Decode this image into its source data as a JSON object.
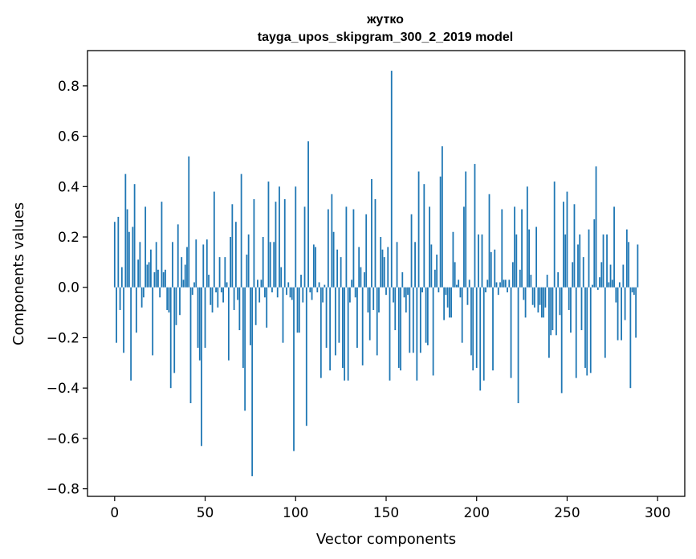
{
  "chart_data": {
    "type": "bar",
    "title": "жутко",
    "subtitle": "tayga_upos_skipgram_300_2_2019 model",
    "xlabel": "Vector components",
    "ylabel": "Components values",
    "xlim": [
      -15,
      315
    ],
    "ylim": [
      -0.83,
      0.94
    ],
    "xticks": [
      0,
      50,
      100,
      150,
      200,
      250,
      300
    ],
    "xtick_labels": [
      "0",
      "50",
      "100",
      "150",
      "200",
      "250",
      "300"
    ],
    "yticks": [
      -0.8,
      -0.6,
      -0.4,
      -0.2,
      0.0,
      0.2,
      0.4,
      0.6,
      0.8
    ],
    "ytick_labels": [
      "−0.8",
      "−0.6",
      "−0.4",
      "−0.2",
      "0.0",
      "0.2",
      "0.4",
      "0.6",
      "0.8"
    ],
    "bar_color": "#1f77b4",
    "values": [
      0.26,
      -0.22,
      0.28,
      -0.09,
      0.08,
      -0.26,
      0.45,
      0.31,
      0.22,
      -0.37,
      0.24,
      0.41,
      -0.18,
      0.11,
      0.18,
      -0.08,
      -0.04,
      0.32,
      0.09,
      0.1,
      0.15,
      -0.27,
      0.06,
      0.18,
      0.07,
      -0.04,
      0.34,
      0.06,
      0.07,
      -0.09,
      -0.1,
      -0.4,
      0.18,
      -0.34,
      -0.15,
      0.25,
      -0.11,
      0.12,
      0.03,
      0.09,
      0.16,
      0.52,
      -0.46,
      -0.03,
      0.02,
      0.19,
      -0.24,
      -0.29,
      -0.63,
      0.17,
      -0.24,
      0.19,
      0.05,
      -0.07,
      -0.1,
      0.38,
      -0.02,
      -0.08,
      0.12,
      -0.02,
      -0.06,
      0.12,
      0.02,
      -0.29,
      0.2,
      0.33,
      -0.09,
      0.26,
      -0.05,
      -0.17,
      0.45,
      -0.32,
      -0.49,
      0.13,
      0.21,
      -0.23,
      -0.75,
      0.35,
      -0.15,
      0.03,
      -0.06,
      0.03,
      0.2,
      -0.04,
      -0.16,
      0.42,
      0.18,
      -0.02,
      0.18,
      0.34,
      -0.04,
      0.4,
      0.08,
      -0.22,
      0.35,
      -0.03,
      0.02,
      -0.04,
      -0.05,
      -0.65,
      0.4,
      -0.18,
      -0.18,
      0.05,
      -0.06,
      0.32,
      -0.55,
      0.58,
      -0.02,
      -0.05,
      0.17,
      0.16,
      -0.02,
      0.02,
      -0.36,
      -0.06,
      0.01,
      -0.24,
      0.31,
      -0.33,
      0.37,
      0.22,
      -0.27,
      0.15,
      -0.22,
      0.12,
      -0.32,
      -0.37,
      0.32,
      -0.37,
      -0.06,
      0.03,
      0.31,
      -0.04,
      -0.24,
      0.16,
      0.08,
      -0.31,
      0.06,
      0.29,
      -0.1,
      -0.21,
      0.43,
      -0.09,
      0.35,
      -0.27,
      -0.1,
      0.2,
      0.15,
      0.12,
      -0.03,
      0.16,
      -0.37,
      0.86,
      -0.06,
      -0.17,
      0.18,
      -0.32,
      -0.33,
      0.06,
      -0.04,
      -0.1,
      -0.03,
      -0.26,
      0.29,
      -0.26,
      0.18,
      -0.37,
      0.46,
      -0.26,
      -0.02,
      0.41,
      -0.22,
      -0.23,
      0.32,
      0.17,
      -0.35,
      0.07,
      0.13,
      -0.02,
      0.44,
      0.56,
      -0.13,
      -0.03,
      -0.08,
      -0.12,
      -0.12,
      0.22,
      0.1,
      0.01,
      0.03,
      -0.04,
      -0.22,
      0.32,
      0.46,
      -0.07,
      0.03,
      -0.27,
      -0.33,
      0.49,
      -0.32,
      0.21,
      -0.41,
      0.21,
      -0.37,
      -0.02,
      0.03,
      0.37,
      0.14,
      -0.33,
      0.15,
      0.02,
      -0.03,
      0.02,
      0.31,
      0.03,
      0.03,
      -0.02,
      0.03,
      -0.36,
      0.1,
      0.32,
      0.21,
      -0.46,
      0.07,
      0.31,
      -0.05,
      -0.12,
      0.4,
      0.23,
      0.05,
      -0.07,
      -0.08,
      0.24,
      -0.1,
      -0.07,
      -0.12,
      -0.12,
      -0.08,
      0.05,
      -0.28,
      -0.19,
      -0.17,
      0.42,
      -0.19,
      0.06,
      -0.11,
      -0.42,
      0.34,
      0.21,
      0.38,
      -0.09,
      -0.18,
      0.1,
      0.33,
      -0.36,
      0.17,
      0.21,
      -0.17,
      0.12,
      -0.32,
      -0.35,
      0.23,
      -0.34,
      0.01,
      0.27,
      0.48,
      -0.01,
      0.04,
      0.1,
      0.21,
      -0.28,
      0.21,
      0.02,
      0.09,
      0.03,
      0.32,
      -0.06,
      -0.21,
      0.02,
      -0.21,
      0.09,
      -0.13,
      0.23,
      0.18,
      -0.4,
      -0.02,
      -0.03,
      -0.2,
      0.17
    ]
  }
}
